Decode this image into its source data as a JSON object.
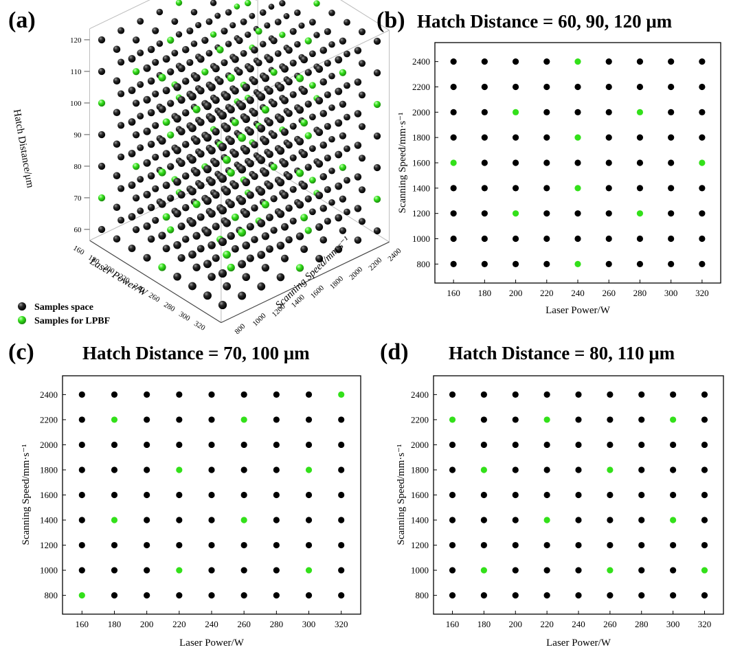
{
  "colors": {
    "sample_space": "#000000",
    "lpbf": "#33e01a",
    "axis": "#000000",
    "grid3d": "#bbbbbb",
    "background": "#ffffff"
  },
  "legend": {
    "samples_space": "Samples space",
    "samples_lpbf": "Samples for LPBF"
  },
  "chart_data": [
    {
      "panel": "(a)",
      "type": "scatter",
      "projection": "3d",
      "title": "",
      "xlabel": "Laser Power/W",
      "ylabel": "Scanning Speed/mm·s⁻¹",
      "zlabel": "Hatch Distance/μm",
      "x_ticks": [
        "160",
        "180",
        "200",
        "220",
        "240",
        "260",
        "280",
        "300",
        "320"
      ],
      "y_ticks": [
        "800",
        "1000",
        "1200",
        "1400",
        "1600",
        "1800",
        "2000",
        "2200",
        "2400"
      ],
      "z_ticks": [
        "60",
        "70",
        "80",
        "90",
        "100",
        "110",
        "120"
      ],
      "x_values": [
        160,
        180,
        200,
        220,
        240,
        260,
        280,
        300,
        320
      ],
      "y_values": [
        800,
        1000,
        1200,
        1400,
        1600,
        1800,
        2000,
        2200,
        2400
      ],
      "z_values": [
        60,
        70,
        80,
        90,
        100,
        110,
        120
      ],
      "series": [
        {
          "name": "Samples space",
          "description": "full factorial 9 x 9 x 7 grid"
        },
        {
          "name": "Samples for LPBF",
          "description": "points listed in panels (b)-(d) for each hatch distance"
        }
      ]
    },
    {
      "panel": "(b)",
      "type": "scatter",
      "title": "Hatch Distance = 60, 90, 120 μm",
      "xlabel": "Laser Power/W",
      "ylabel": "Scanning Speed/mm·s⁻¹",
      "x_ticks": [
        "160",
        "180",
        "200",
        "220",
        "240",
        "260",
        "280",
        "300",
        "320"
      ],
      "y_ticks": [
        "800",
        "1000",
        "1200",
        "1400",
        "1600",
        "1800",
        "2000",
        "2200",
        "2400"
      ],
      "xlim": [
        148,
        332
      ],
      "ylim": [
        650,
        2550
      ],
      "grid": false,
      "series": [
        {
          "name": "Samples space",
          "grid_x": [
            160,
            180,
            200,
            220,
            240,
            260,
            280,
            300,
            320
          ],
          "grid_y": [
            800,
            1000,
            1200,
            1400,
            1600,
            1800,
            2000,
            2200,
            2400
          ]
        },
        {
          "name": "Samples for LPBF",
          "points": [
            [
              240,
              2400
            ],
            [
              200,
              2000
            ],
            [
              280,
              2000
            ],
            [
              240,
              1800
            ],
            [
              160,
              1600
            ],
            [
              320,
              1600
            ],
            [
              240,
              1400
            ],
            [
              200,
              1200
            ],
            [
              280,
              1200
            ],
            [
              240,
              800
            ]
          ]
        }
      ]
    },
    {
      "panel": "(c)",
      "type": "scatter",
      "title": "Hatch Distance = 70, 100 μm",
      "xlabel": "Laser Power/W",
      "ylabel": "Scanning Speed/mm·s⁻¹",
      "x_ticks": [
        "160",
        "180",
        "200",
        "220",
        "240",
        "260",
        "280",
        "300",
        "320"
      ],
      "y_ticks": [
        "800",
        "1000",
        "1200",
        "1400",
        "1600",
        "1800",
        "2000",
        "2200",
        "2400"
      ],
      "xlim": [
        148,
        332
      ],
      "ylim": [
        650,
        2550
      ],
      "grid": false,
      "series": [
        {
          "name": "Samples space",
          "grid_x": [
            160,
            180,
            200,
            220,
            240,
            260,
            280,
            300,
            320
          ],
          "grid_y": [
            800,
            1000,
            1200,
            1400,
            1600,
            1800,
            2000,
            2200,
            2400
          ]
        },
        {
          "name": "Samples for LPBF",
          "points": [
            [
              320,
              2400
            ],
            [
              180,
              2200
            ],
            [
              260,
              2200
            ],
            [
              220,
              1800
            ],
            [
              300,
              1800
            ],
            [
              180,
              1400
            ],
            [
              260,
              1400
            ],
            [
              220,
              1000
            ],
            [
              300,
              1000
            ],
            [
              160,
              800
            ]
          ]
        }
      ]
    },
    {
      "panel": "(d)",
      "type": "scatter",
      "title": "Hatch Distance = 80, 110 μm",
      "xlabel": "Laser Power/W",
      "ylabel": "Scanning Speed/mm·s⁻¹",
      "x_ticks": [
        "160",
        "180",
        "200",
        "220",
        "240",
        "260",
        "280",
        "300",
        "320"
      ],
      "y_ticks": [
        "800",
        "1000",
        "1200",
        "1400",
        "1600",
        "1800",
        "2000",
        "2200",
        "2400"
      ],
      "xlim": [
        148,
        332
      ],
      "ylim": [
        650,
        2550
      ],
      "grid": false,
      "series": [
        {
          "name": "Samples space",
          "grid_x": [
            160,
            180,
            200,
            220,
            240,
            260,
            280,
            300,
            320
          ],
          "grid_y": [
            800,
            1000,
            1200,
            1400,
            1600,
            1800,
            2000,
            2200,
            2400
          ]
        },
        {
          "name": "Samples for LPBF",
          "points": [
            [
              160,
              2200
            ],
            [
              220,
              2200
            ],
            [
              300,
              2200
            ],
            [
              180,
              1800
            ],
            [
              260,
              1800
            ],
            [
              220,
              1400
            ],
            [
              300,
              1400
            ],
            [
              180,
              1000
            ],
            [
              260,
              1000
            ],
            [
              320,
              1000
            ]
          ]
        }
      ]
    }
  ]
}
